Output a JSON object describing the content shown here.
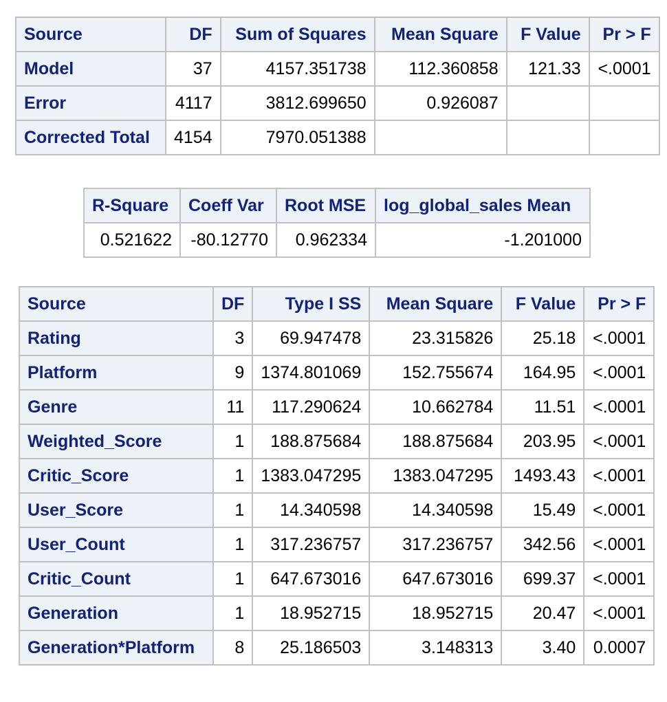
{
  "anova": {
    "headers": [
      "Source",
      "DF",
      "Sum of Squares",
      "Mean Square",
      "F Value",
      "Pr > F"
    ],
    "rows": [
      [
        "Model",
        "37",
        "4157.351738",
        "112.360858",
        "121.33",
        "<.0001"
      ],
      [
        "Error",
        "4117",
        "3812.699650",
        "0.926087",
        "",
        ""
      ],
      [
        "Corrected Total",
        "4154",
        "7970.051388",
        "",
        "",
        ""
      ]
    ]
  },
  "fit": {
    "headers": [
      "R-Square",
      "Coeff Var",
      "Root MSE",
      "log_global_sales Mean"
    ],
    "values": [
      "0.521622",
      "-80.12770",
      "0.962334",
      "-1.201000"
    ]
  },
  "type1": {
    "headers": [
      "Source",
      "DF",
      "Type I SS",
      "Mean Square",
      "F Value",
      "Pr > F"
    ],
    "rows": [
      [
        "Rating",
        "3",
        "69.947478",
        "23.315826",
        "25.18",
        "<.0001"
      ],
      [
        "Platform",
        "9",
        "1374.801069",
        "152.755674",
        "164.95",
        "<.0001"
      ],
      [
        "Genre",
        "11",
        "117.290624",
        "10.662784",
        "11.51",
        "<.0001"
      ],
      [
        "Weighted_Score",
        "1",
        "188.875684",
        "188.875684",
        "203.95",
        "<.0001"
      ],
      [
        "Critic_Score",
        "1",
        "1383.047295",
        "1383.047295",
        "1493.43",
        "<.0001"
      ],
      [
        "User_Score",
        "1",
        "14.340598",
        "14.340598",
        "15.49",
        "<.0001"
      ],
      [
        "User_Count",
        "1",
        "317.236757",
        "317.236757",
        "342.56",
        "<.0001"
      ],
      [
        "Critic_Count",
        "1",
        "647.673016",
        "647.673016",
        "699.37",
        "<.0001"
      ],
      [
        "Generation",
        "1",
        "18.952715",
        "18.952715",
        "20.47",
        "<.0001"
      ],
      [
        "Generation*Platform",
        "8",
        "25.186503",
        "3.148313",
        "3.40",
        "0.0007"
      ]
    ]
  }
}
